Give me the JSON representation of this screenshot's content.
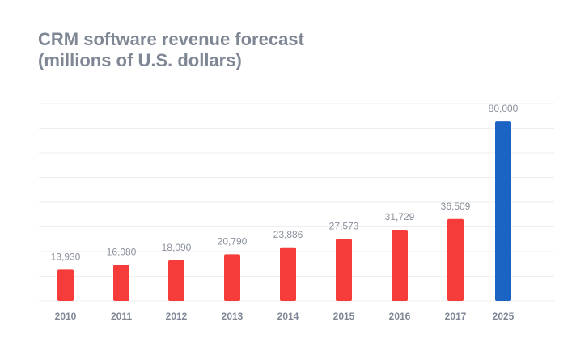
{
  "chart_data": {
    "type": "bar",
    "title": [
      "CRM software revenue forecast",
      "(millions of U.S. dollars)"
    ],
    "xlabel": "",
    "ylabel": "",
    "categories": [
      "2010",
      "2011",
      "2012",
      "2013",
      "2014",
      "2015",
      "2016",
      "2017",
      "2025"
    ],
    "values": [
      13930,
      16080,
      18090,
      20790,
      23886,
      27573,
      31729,
      36509,
      80000
    ],
    "data_labels": [
      "13,930",
      "16,080",
      "18,090",
      "20,790",
      "23,886",
      "27,573",
      "31,729",
      "36,509",
      "80,000"
    ],
    "ylim": [
      0,
      88000
    ],
    "grid": true,
    "colors": {
      "actual": "#f53c3b",
      "forecast": "#1c64c4",
      "grid": "#eceef1",
      "text": "#8a909b"
    },
    "forecast_categories": [
      "2025"
    ]
  }
}
